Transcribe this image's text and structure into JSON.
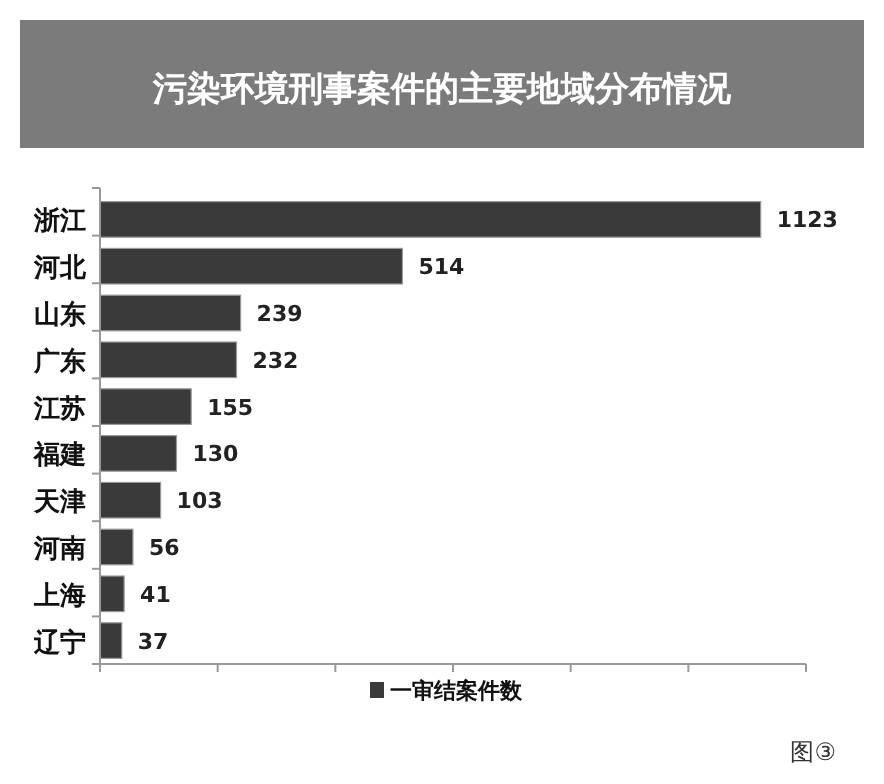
{
  "chart_data": {
    "type": "bar",
    "orientation": "horizontal",
    "title": "污染环境刑事案件的主要地域分布情况",
    "categories": [
      "浙江",
      "河北",
      "山东",
      "广东",
      "江苏",
      "福建",
      "天津",
      "河南",
      "上海",
      "辽宁"
    ],
    "series": [
      {
        "name": "一审结案件数",
        "color": "#3a3a3a",
        "values": [
          1123,
          514,
          239,
          232,
          155,
          130,
          103,
          56,
          41,
          37
        ]
      }
    ],
    "xlim": [
      0,
      1200
    ],
    "xticks": [
      {
        "value": 0,
        "label": null
      },
      {
        "value": 200,
        "label": null
      },
      {
        "value": 400,
        "label": null
      },
      {
        "value": 600,
        "label": null
      },
      {
        "value": 800,
        "label": null
      },
      {
        "value": 1000,
        "label": null
      },
      {
        "value": 1200,
        "label": null
      }
    ],
    "tick_labels": "y",
    "data_labels": true,
    "legend": "bottom",
    "grid": false,
    "annotations": [
      "图③"
    ]
  }
}
